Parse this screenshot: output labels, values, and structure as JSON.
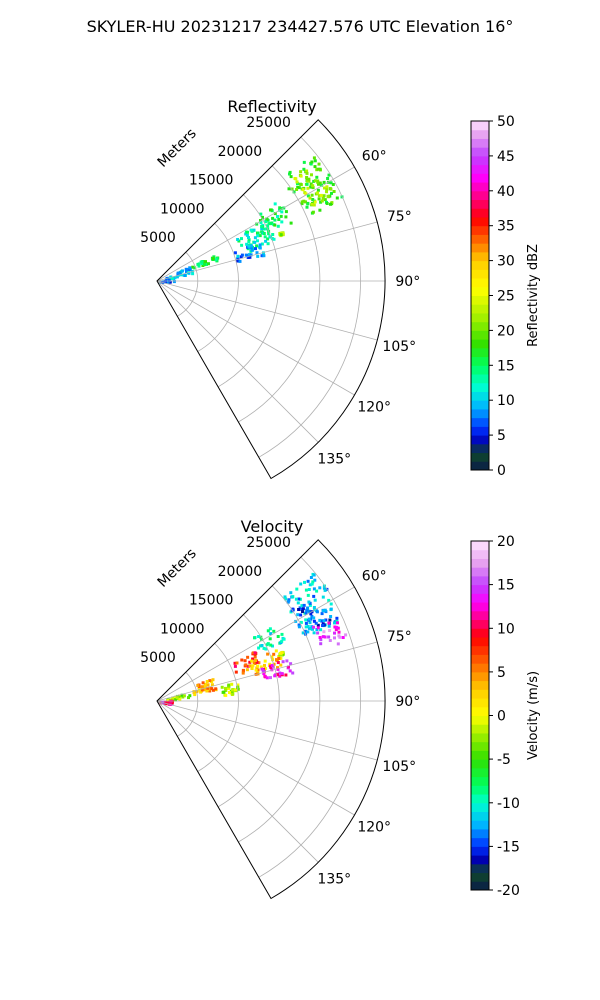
{
  "figure": {
    "suptitle": "SKYLER-HU  20231217  234427.576 UTC Elevation 16°"
  },
  "chart_data": [
    {
      "type": "polar-sector",
      "title": "Reflectivity",
      "radial_axis_label": "Meters",
      "theta_range_deg": [
        45,
        150
      ],
      "r_max": 28000,
      "radial_ticks": [
        5000,
        10000,
        15000,
        20000,
        25000
      ],
      "angle_ticks_deg": [
        60,
        75,
        90,
        105,
        120,
        135
      ],
      "grid": true,
      "colorbar": {
        "label": "Reflectivity dBZ",
        "min": 0,
        "max": 50,
        "ticks": [
          0,
          5,
          10,
          15,
          20,
          25,
          30,
          35,
          40,
          45,
          50
        ],
        "stops": [
          {
            "v": 0,
            "color": "#0a1a4a"
          },
          {
            "v": 2.5,
            "color": "#0f4a2a"
          },
          {
            "v": 4,
            "color": "#0000b0"
          },
          {
            "v": 6,
            "color": "#0030ff"
          },
          {
            "v": 9,
            "color": "#00b4ff"
          },
          {
            "v": 12,
            "color": "#00ffd0"
          },
          {
            "v": 15,
            "color": "#00ff60"
          },
          {
            "v": 18,
            "color": "#30e000"
          },
          {
            "v": 22,
            "color": "#a8f000"
          },
          {
            "v": 26,
            "color": "#ffff00"
          },
          {
            "v": 30,
            "color": "#ffcc00"
          },
          {
            "v": 33,
            "color": "#ff6600"
          },
          {
            "v": 36,
            "color": "#ff0000"
          },
          {
            "v": 39,
            "color": "#ff0080"
          },
          {
            "v": 42,
            "color": "#ff00ff"
          },
          {
            "v": 45,
            "color": "#c040ff"
          },
          {
            "v": 48,
            "color": "#e6a0f0"
          },
          {
            "v": 50,
            "color": "#ffe6ff"
          }
        ]
      },
      "echo_regions": [
        {
          "az": [
            50,
            66
          ],
          "r": [
            19500,
            25000
          ],
          "value": 18
        },
        {
          "az": [
            52,
            64
          ],
          "r": [
            21000,
            24000
          ],
          "value": 22
        },
        {
          "az": [
            56,
            66
          ],
          "r": [
            13500,
            18000
          ],
          "value": 15
        },
        {
          "az": [
            60,
            72
          ],
          "r": [
            11000,
            15500
          ],
          "value": 13
        },
        {
          "az": [
            68,
            76
          ],
          "r": [
            10000,
            13500
          ],
          "value": 8
        },
        {
          "az": [
            64,
            70
          ],
          "r": [
            4500,
            8000
          ],
          "value": 16
        },
        {
          "az": [
            64,
            76
          ],
          "r": [
            1000,
            4500
          ],
          "value": 10
        },
        {
          "az": [
            78,
            90
          ],
          "r": [
            0,
            2000
          ],
          "value": 7
        },
        {
          "az": [
            68,
            69
          ],
          "r": [
            16000,
            16500
          ],
          "value": 22
        }
      ]
    },
    {
      "type": "polar-sector",
      "title": "Velocity",
      "radial_axis_label": "Meters",
      "theta_range_deg": [
        45,
        150
      ],
      "r_max": 28000,
      "radial_ticks": [
        5000,
        10000,
        15000,
        20000,
        25000
      ],
      "angle_ticks_deg": [
        60,
        75,
        90,
        105,
        120,
        135
      ],
      "grid": true,
      "colorbar": {
        "label": "Velocity (m/s)",
        "min": -20,
        "max": 20,
        "ticks": [
          -20,
          -15,
          -10,
          -5,
          0,
          5,
          10,
          15,
          20
        ],
        "stops": [
          {
            "v": -20,
            "color": "#0a1a4a"
          },
          {
            "v": -18,
            "color": "#0f4a2a"
          },
          {
            "v": -16.5,
            "color": "#0000b0"
          },
          {
            "v": -15,
            "color": "#0030ff"
          },
          {
            "v": -12.5,
            "color": "#00b4ff"
          },
          {
            "v": -10,
            "color": "#00ffd0"
          },
          {
            "v": -8,
            "color": "#00ff60"
          },
          {
            "v": -5,
            "color": "#30e000"
          },
          {
            "v": -2,
            "color": "#a8f000"
          },
          {
            "v": 0,
            "color": "#ffff00"
          },
          {
            "v": 3,
            "color": "#ffcc00"
          },
          {
            "v": 6,
            "color": "#ff6600"
          },
          {
            "v": 9,
            "color": "#ff0000"
          },
          {
            "v": 11,
            "color": "#ff0080"
          },
          {
            "v": 13,
            "color": "#ff00ff"
          },
          {
            "v": 15,
            "color": "#c040ff"
          },
          {
            "v": 17.5,
            "color": "#e6a0f0"
          },
          {
            "v": 20,
            "color": "#ffe6ff"
          }
        ]
      },
      "echo_regions": [
        {
          "az": [
            50,
            66
          ],
          "r": [
            19500,
            25000
          ],
          "value": -12
        },
        {
          "az": [
            56,
            66
          ],
          "r": [
            20000,
            23500
          ],
          "value": -14
        },
        {
          "az": [
            64,
            72
          ],
          "r": [
            21000,
            24500
          ],
          "value": 15
        },
        {
          "az": [
            56,
            64
          ],
          "r": [
            14000,
            17500
          ],
          "value": -10
        },
        {
          "az": [
            62,
            70
          ],
          "r": [
            10000,
            13500
          ],
          "value": 8
        },
        {
          "az": [
            66,
            74
          ],
          "r": [
            11000,
            16000
          ],
          "value": 3
        },
        {
          "az": [
            70,
            78
          ],
          "r": [
            13000,
            17000
          ],
          "value": 13
        },
        {
          "az": [
            66,
            78
          ],
          "r": [
            4500,
            7500
          ],
          "value": 4
        },
        {
          "az": [
            76,
            84
          ],
          "r": [
            8000,
            10000
          ],
          "value": -2
        },
        {
          "az": [
            72,
            82
          ],
          "r": [
            1000,
            4000
          ],
          "value": -3
        },
        {
          "az": [
            84,
            100
          ],
          "r": [
            0,
            1800
          ],
          "value": 12
        },
        {
          "az": [
            68,
            69
          ],
          "r": [
            16000,
            16500
          ],
          "value": -2
        }
      ]
    }
  ]
}
